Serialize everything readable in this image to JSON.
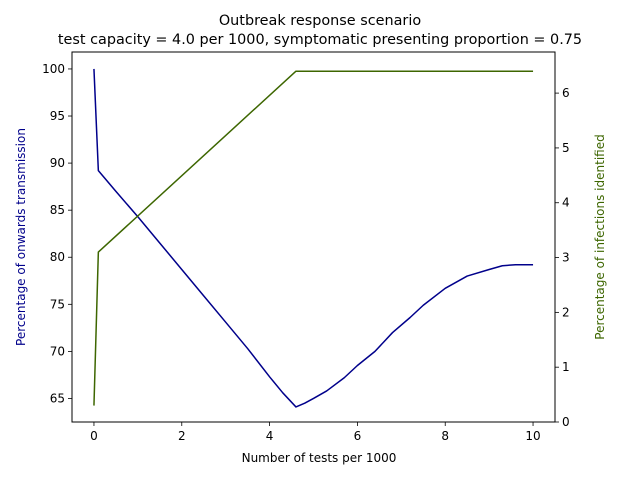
{
  "chart_data": {
    "type": "line",
    "title": "Outbreak response scenario",
    "subtitle": "test capacity = 4.0 per 1000, symptomatic presenting proportion = 0.75",
    "xlabel": "Number of tests per 1000",
    "ylabel_left": "Percentage of onwards transmission",
    "ylabel_right": "Percentage of infections identified",
    "xlim": [
      -0.5,
      10.5
    ],
    "ylim_left": [
      62.5,
      101.8
    ],
    "ylim_right": [
      0,
      6.75
    ],
    "x_ticks": [
      0,
      2,
      4,
      6,
      8,
      10
    ],
    "x_tick_labels": [
      "0",
      "2",
      "4",
      "6",
      "8",
      "10"
    ],
    "y_left_ticks": [
      65,
      70,
      75,
      80,
      85,
      90,
      95,
      100
    ],
    "y_left_tick_labels": [
      "65",
      "70",
      "75",
      "80",
      "85",
      "90",
      "95",
      "100"
    ],
    "y_right_ticks": [
      0,
      1,
      2,
      3,
      4,
      5,
      6
    ],
    "y_right_tick_labels": [
      "0",
      "1",
      "2",
      "3",
      "4",
      "5",
      "6"
    ],
    "grid": false,
    "series": [
      {
        "axis": "left",
        "color": "#00008b",
        "x": [
          0,
          0.1,
          0.5,
          1,
          1.5,
          2,
          2.5,
          3,
          3.5,
          4,
          4.3,
          4.6,
          4.8,
          5.0,
          5.3,
          5.7,
          6.0,
          6.4,
          6.8,
          7.2,
          7.5,
          8.0,
          8.5,
          9.0,
          9.3,
          9.6,
          10
        ],
        "y": [
          100,
          89.2,
          87.0,
          84.3,
          81.5,
          78.7,
          75.9,
          73.1,
          70.3,
          67.3,
          65.6,
          64.1,
          64.5,
          65.0,
          65.8,
          67.2,
          68.5,
          70.0,
          72.0,
          73.6,
          74.9,
          76.7,
          78.0,
          78.7,
          79.1,
          79.2,
          79.2
        ]
      },
      {
        "axis": "right",
        "color": "#3d6600",
        "x": [
          0,
          0.1,
          4.6,
          10
        ],
        "y": [
          0.3,
          3.1,
          6.4,
          6.4
        ]
      }
    ]
  }
}
